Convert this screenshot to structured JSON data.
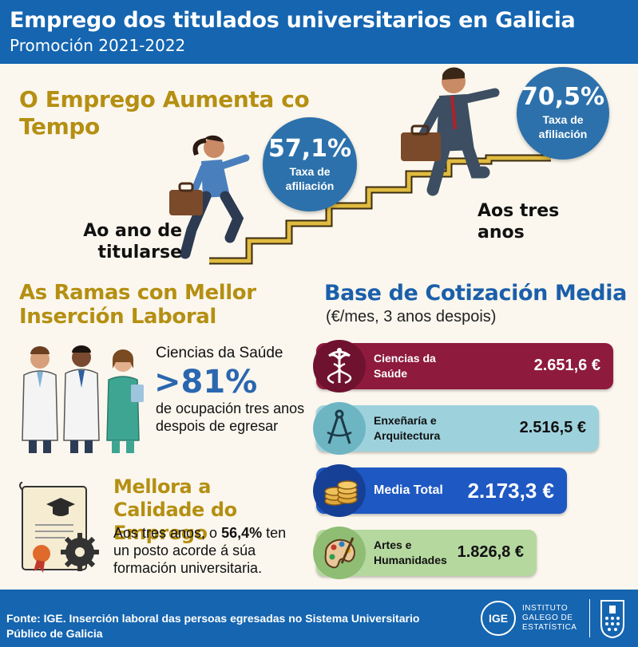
{
  "header": {
    "title": "Emprego dos titulados universitarios en Galicia",
    "subtitle": "Promoción 2021-2022"
  },
  "employment": {
    "section_title": "O Emprego Aumenta co Tempo",
    "year1": {
      "value": "57,1%",
      "label": "Taxa de afiliación",
      "caption": "Ao ano de titularse"
    },
    "year3": {
      "value": "70,5%",
      "label": "Taxa de afiliación",
      "caption": "Aos tres anos"
    }
  },
  "branches": {
    "section_title": "As Ramas con Mellor Inserción Laboral",
    "branch_name": "Ciencias da Saúde",
    "stat": ">81%",
    "stat_desc": "de ocupación tres anos despois de egresar"
  },
  "quality": {
    "section_title": "Mellora a Calidade do Emprego",
    "text_before": "Aos tres anos, o ",
    "pct": "56,4%",
    "text_after": " ten un posto acorde á súa formación universitaria."
  },
  "contribution": {
    "section_title": "Base de Cotización Media",
    "subtitle": "(€/mes, 3 anos despois)",
    "items": [
      {
        "label": "Ciencias da Saúde",
        "value": "2.651,6 €",
        "icon": "caduceus-icon",
        "color": "#8e1a3e"
      },
      {
        "label": "Enxeñaría e Arquitectura",
        "value": "2.516,5 €",
        "icon": "compass-icon",
        "color": "#9dd2dd"
      },
      {
        "label": "Media Total",
        "value": "2.173,3 €",
        "icon": "coins-icon",
        "color": "#1e58c3"
      },
      {
        "label": "Artes e Humanidades",
        "value": "1.826,8 €",
        "icon": "palette-icon",
        "color": "#b5d89f"
      }
    ]
  },
  "footer": {
    "source": "Fonte: IGE. Inserción laboral das persoas egresadas no Sistema Universitario Público de Galicia",
    "ige_logo_text": "IGE",
    "institute_line1": "INSTITUTO",
    "institute_line2": "GALEGO DE",
    "institute_line3": "ESTATÍSTICA"
  }
}
